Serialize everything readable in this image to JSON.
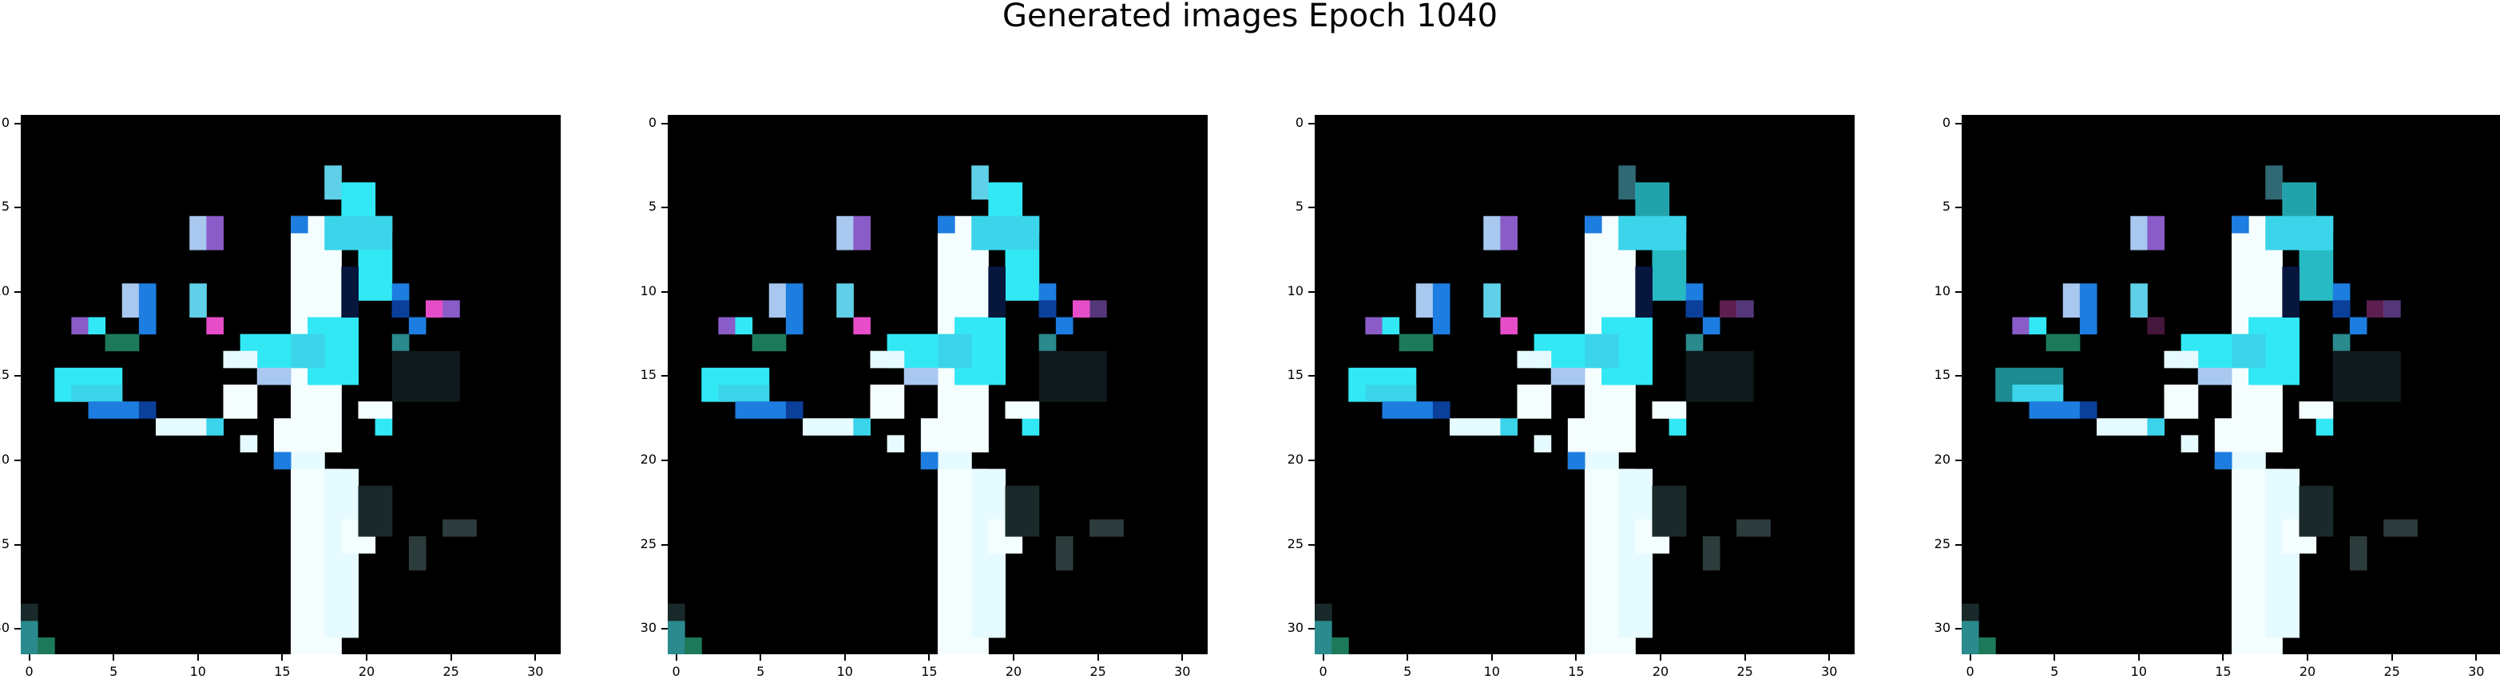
{
  "title": "Generated images Epoch 1040",
  "panels": [
    {
      "name": "generated-image-1"
    },
    {
      "name": "generated-image-2"
    },
    {
      "name": "generated-image-3"
    },
    {
      "name": "generated-image-4"
    }
  ],
  "axes": {
    "x_ticks": [
      0,
      5,
      10,
      15,
      20,
      25,
      30
    ],
    "y_ticks": [
      0,
      5,
      10,
      15,
      20,
      25,
      30
    ],
    "xlim": [
      -0.5,
      31.5
    ],
    "ylim": [
      31.5,
      -0.5
    ]
  },
  "image": {
    "grid_size": 32,
    "content": "pixel-art tree silhouette: white trunk, cyan and blue foliage with magenta accents on black background"
  }
}
